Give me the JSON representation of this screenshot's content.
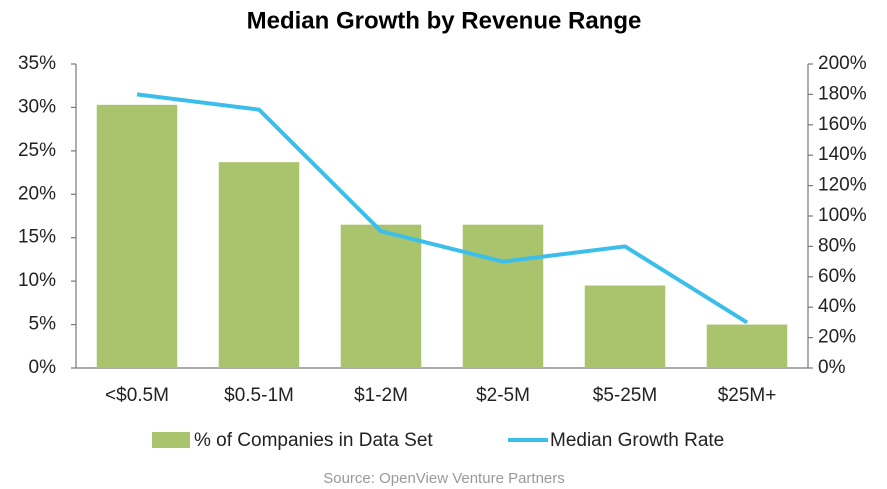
{
  "chart_data": {
    "type": "bar_line",
    "title": "Median Growth by Revenue Range",
    "categories": [
      "<$0.5M",
      "$0.5-1M",
      "$1-2M",
      "$2-5M",
      "$5-25M",
      "$25M+"
    ],
    "series": [
      {
        "name": "% of Companies in Data Set",
        "type": "bar",
        "color": "#a9c46c",
        "values": [
          30.3,
          23.7,
          16.5,
          16.5,
          9.5,
          5.0
        ]
      },
      {
        "name": "Median Growth Rate",
        "type": "line",
        "axis": "y2",
        "color": "#3bbfea",
        "values": [
          180,
          170,
          90,
          70,
          80,
          30
        ]
      }
    ],
    "ylim": [
      0,
      35
    ],
    "yticks": [
      {
        "value": 0,
        "label": "0%"
      },
      {
        "value": 5,
        "label": "5%"
      },
      {
        "value": 10,
        "label": "10%"
      },
      {
        "value": 15,
        "label": "15%"
      },
      {
        "value": 20,
        "label": "20%"
      },
      {
        "value": 25,
        "label": "25%"
      },
      {
        "value": 30,
        "label": "30%"
      },
      {
        "value": 35,
        "label": "35%"
      }
    ],
    "y2lim": [
      0,
      200
    ],
    "y2ticks": [
      {
        "value": 0,
        "label": "0%"
      },
      {
        "value": 20,
        "label": "20%"
      },
      {
        "value": 40,
        "label": "40%"
      },
      {
        "value": 60,
        "label": "60%"
      },
      {
        "value": 80,
        "label": "80%"
      },
      {
        "value": 100,
        "label": "100%"
      },
      {
        "value": 120,
        "label": "120%"
      },
      {
        "value": 140,
        "label": "140%"
      },
      {
        "value": 160,
        "label": "160%"
      },
      {
        "value": 180,
        "label": "180%"
      },
      {
        "value": 200,
        "label": "200%"
      }
    ],
    "grid": false,
    "legend": "bottom",
    "source": "Source: OpenView Venture Partners"
  }
}
